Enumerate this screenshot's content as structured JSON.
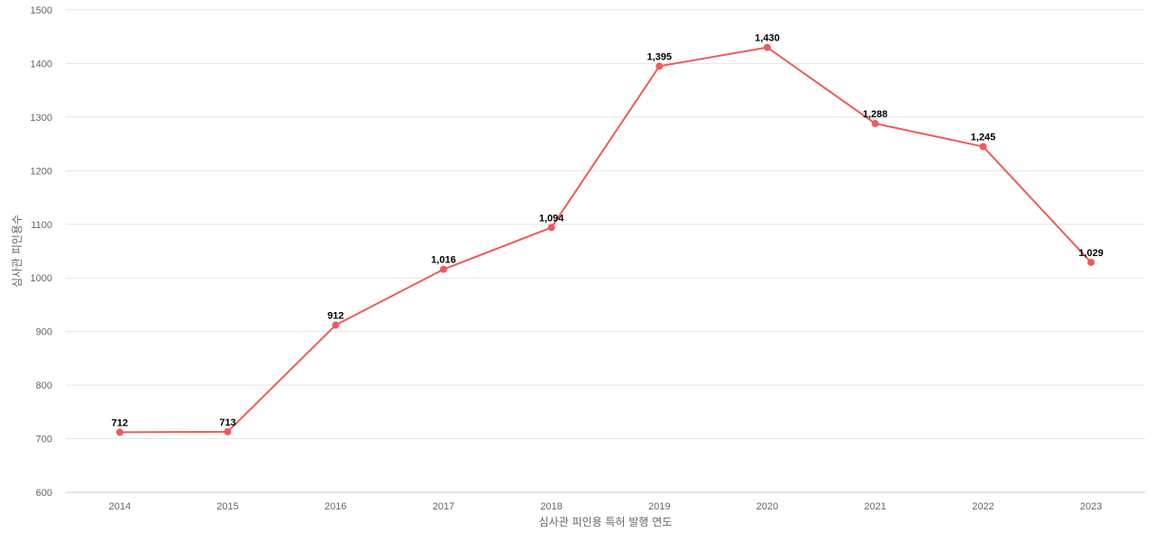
{
  "chart_data": {
    "type": "line",
    "title": "",
    "xlabel": "심사관 피인용 특허 발행 연도",
    "ylabel": "심사관 피인용수",
    "categories": [
      "2014",
      "2015",
      "2016",
      "2017",
      "2018",
      "2019",
      "2020",
      "2021",
      "2022",
      "2023"
    ],
    "series": [
      {
        "values": [
          712,
          713,
          912,
          1016,
          1094,
          1395,
          1430,
          1288,
          1245,
          1029
        ],
        "data_labels": [
          "712",
          "713",
          "912",
          "1,016",
          "1,094",
          "1,395",
          "1,430",
          "1,288",
          "1,245",
          "1,029"
        ]
      }
    ],
    "ylim": [
      600,
      1500
    ],
    "yticks": [
      "600",
      "700",
      "800",
      "900",
      "1000",
      "1100",
      "1200",
      "1300",
      "1400",
      "1500"
    ],
    "grid": true,
    "legend": "none",
    "colors": {
      "line": "#ef5a5a"
    }
  }
}
